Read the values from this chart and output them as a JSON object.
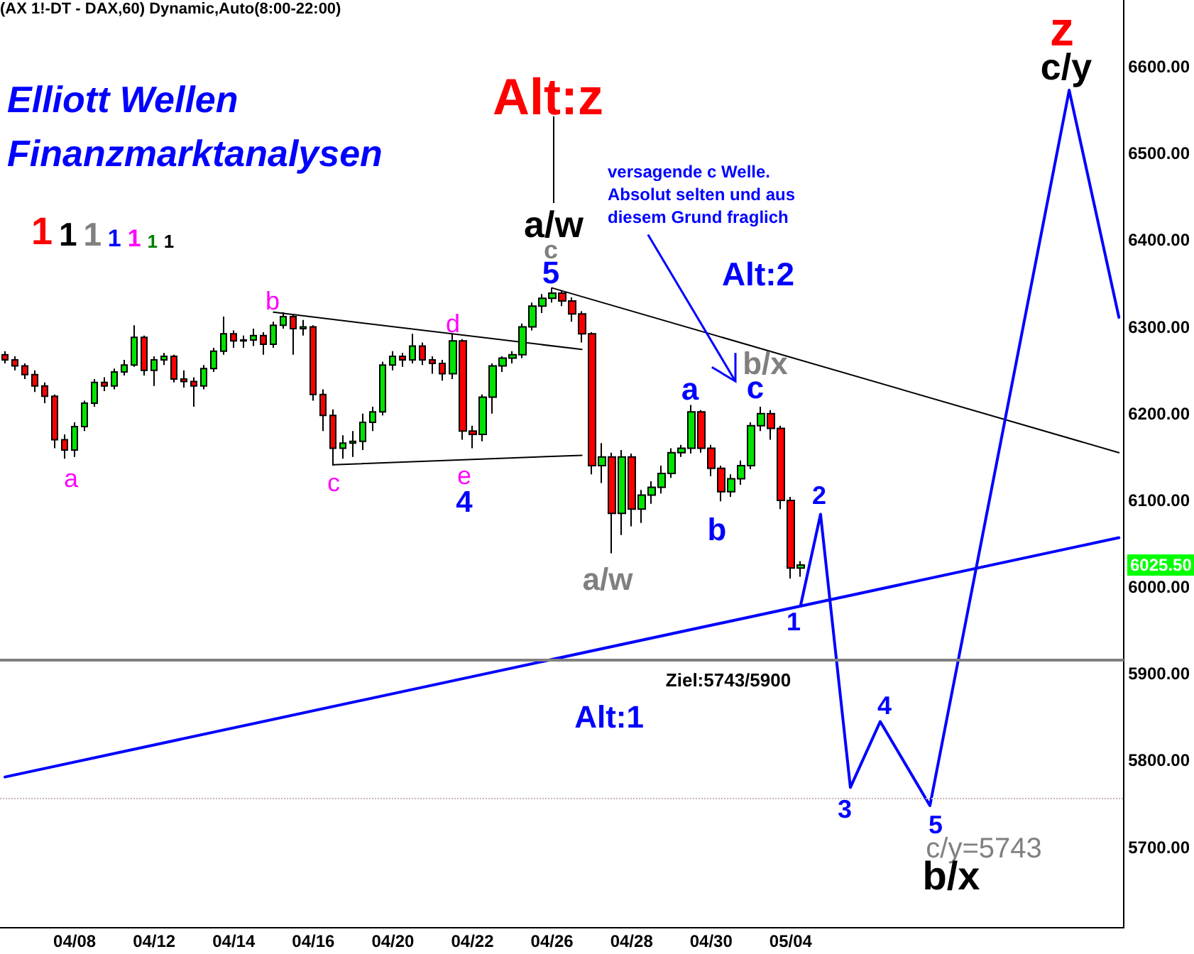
{
  "chart_data": {
    "type": "candlestick",
    "title": "(AX 1!-DT - DAX,60) Dynamic,Auto(8:00-22:00)",
    "categories": [
      null,
      null,
      null,
      null,
      null,
      null,
      null,
      "04/08",
      null,
      null,
      null,
      null,
      null,
      null,
      null,
      "04/12",
      null,
      null,
      null,
      null,
      null,
      null,
      null,
      "04/14",
      null,
      null,
      null,
      null,
      null,
      null,
      null,
      "04/16",
      null,
      null,
      null,
      null,
      null,
      null,
      null,
      "04/20",
      null,
      null,
      null,
      null,
      null,
      null,
      null,
      "04/22",
      null,
      null,
      null,
      null,
      null,
      null,
      null,
      "04/26",
      null,
      null,
      null,
      null,
      null,
      null,
      null,
      "04/28",
      null,
      null,
      null,
      null,
      null,
      null,
      null,
      "04/30",
      null,
      null,
      null,
      null,
      null,
      null,
      null,
      "05/04",
      null,
      null,
      null,
      null,
      null,
      null,
      null,
      null,
      null,
      null,
      null,
      null,
      null,
      null,
      null,
      null,
      null,
      null,
      null,
      null,
      null,
      null,
      null,
      null,
      null,
      null,
      null,
      null,
      null,
      null,
      null,
      null,
      null
    ],
    "ylim": [
      5608,
      6677
    ],
    "yticks": [
      {
        "value": 5700,
        "label": "5700.00"
      },
      {
        "value": 5800,
        "label": "5800.00"
      },
      {
        "value": 5900,
        "label": "5900.00"
      },
      {
        "value": 6000,
        "label": "6000.00"
      },
      {
        "value": 6100,
        "label": "6100.00"
      },
      {
        "value": 6200,
        "label": "6200.00"
      },
      {
        "value": 6300,
        "label": "6300.00"
      },
      {
        "value": 6400,
        "label": "6400.00"
      },
      {
        "value": 6500,
        "label": "6500.00"
      },
      {
        "value": 6600,
        "label": "6600.00"
      }
    ],
    "marker": "none",
    "line_style": "solid",
    "ohlc": [
      [
        6268,
        6272,
        6258,
        6262
      ],
      [
        6262,
        6266,
        6250,
        6255
      ],
      [
        6255,
        6258,
        6240,
        6245
      ],
      [
        6245,
        6250,
        6225,
        6232
      ],
      [
        6232,
        6236,
        6212,
        6220
      ],
      [
        6220,
        6222,
        6160,
        6170
      ],
      [
        6170,
        6176,
        6148,
        6158
      ],
      [
        6158,
        6190,
        6150,
        6185
      ],
      [
        6185,
        6215,
        6180,
        6212
      ],
      [
        6212,
        6240,
        6208,
        6236
      ],
      [
        6236,
        6242,
        6226,
        6232
      ],
      [
        6232,
        6252,
        6228,
        6248
      ],
      [
        6248,
        6262,
        6244,
        6256
      ],
      [
        6256,
        6302,
        6254,
        6288
      ],
      [
        6288,
        6290,
        6244,
        6250
      ],
      [
        6250,
        6266,
        6232,
        6262
      ],
      [
        6262,
        6270,
        6256,
        6266
      ],
      [
        6266,
        6268,
        6236,
        6240
      ],
      [
        6240,
        6250,
        6230,
        6237
      ],
      [
        6237,
        6242,
        6208,
        6232
      ],
      [
        6232,
        6256,
        6228,
        6252
      ],
      [
        6252,
        6276,
        6248,
        6272
      ],
      [
        6272,
        6312,
        6268,
        6292
      ],
      [
        6292,
        6296,
        6276,
        6284
      ],
      [
        6284,
        6290,
        6276,
        6285
      ],
      [
        6285,
        6298,
        6278,
        6290
      ],
      [
        6290,
        6294,
        6268,
        6280
      ],
      [
        6280,
        6306,
        6276,
        6302
      ],
      [
        6302,
        6317,
        6298,
        6312
      ],
      [
        6312,
        6314,
        6268,
        6298
      ],
      [
        6298,
        6308,
        6290,
        6300
      ],
      [
        6300,
        6302,
        6215,
        6222
      ],
      [
        6222,
        6228,
        6180,
        6198
      ],
      [
        6198,
        6205,
        6140,
        6160
      ],
      [
        6160,
        6175,
        6148,
        6166
      ],
      [
        6166,
        6180,
        6150,
        6168
      ],
      [
        6168,
        6200,
        6158,
        6190
      ],
      [
        6190,
        6208,
        6180,
        6202
      ],
      [
        6202,
        6260,
        6198,
        6256
      ],
      [
        6256,
        6272,
        6250,
        6266
      ],
      [
        6266,
        6270,
        6254,
        6262
      ],
      [
        6262,
        6292,
        6258,
        6278
      ],
      [
        6278,
        6282,
        6256,
        6262
      ],
      [
        6262,
        6266,
        6246,
        6258
      ],
      [
        6258,
        6262,
        6238,
        6246
      ],
      [
        6246,
        6292,
        6240,
        6284
      ],
      [
        6284,
        6286,
        6170,
        6180
      ],
      [
        6180,
        6186,
        6160,
        6176
      ],
      [
        6176,
        6222,
        6168,
        6219
      ],
      [
        6219,
        6258,
        6200,
        6255
      ],
      [
        6255,
        6266,
        6248,
        6264
      ],
      [
        6264,
        6272,
        6258,
        6268
      ],
      [
        6268,
        6304,
        6264,
        6300
      ],
      [
        6300,
        6328,
        6296,
        6324
      ],
      [
        6324,
        6338,
        6316,
        6333
      ],
      [
        6333,
        6345,
        6328,
        6339
      ],
      [
        6339,
        6342,
        6324,
        6330
      ],
      [
        6330,
        6334,
        6306,
        6315
      ],
      [
        6315,
        6318,
        6282,
        6292
      ],
      [
        6292,
        6294,
        6130,
        6140
      ],
      [
        6140,
        6166,
        6120,
        6150
      ],
      [
        6150,
        6155,
        6039,
        6085
      ],
      [
        6085,
        6158,
        6060,
        6150
      ],
      [
        6150,
        6154,
        6070,
        6090
      ],
      [
        6090,
        6112,
        6074,
        6106
      ],
      [
        6106,
        6122,
        6096,
        6115
      ],
      [
        6115,
        6140,
        6108,
        6131
      ],
      [
        6131,
        6160,
        6126,
        6155
      ],
      [
        6155,
        6164,
        6150,
        6160
      ],
      [
        6160,
        6210,
        6154,
        6202
      ],
      [
        6202,
        6204,
        6155,
        6160
      ],
      [
        6160,
        6164,
        6128,
        6137
      ],
      [
        6137,
        6140,
        6099,
        6110
      ],
      [
        6110,
        6130,
        6104,
        6125
      ],
      [
        6125,
        6146,
        6118,
        6140
      ],
      [
        6140,
        6190,
        6136,
        6186
      ],
      [
        6186,
        6208,
        6180,
        6200
      ],
      [
        6200,
        6204,
        6170,
        6183
      ],
      [
        6183,
        6186,
        6090,
        6100
      ],
      [
        6100,
        6104,
        6010,
        6022
      ],
      [
        6022,
        6030,
        6012,
        6025.5
      ],
      null,
      null,
      null,
      null,
      null,
      null,
      null,
      null,
      null,
      null,
      null,
      null,
      null,
      null,
      null,
      null,
      null,
      null,
      null,
      null,
      null,
      null,
      null,
      null,
      null,
      null,
      null,
      null,
      null,
      null,
      null,
      null
    ],
    "colors": [
      "#ff0000",
      "#ff0000",
      "#ff0000",
      "#ff0000",
      "#ff0000",
      "#ff0000",
      "#ff0000",
      "#00e400",
      "#00e400",
      "#00e400",
      "#ff0000",
      "#00e400",
      "#00e400",
      "#00e400",
      "#ff0000",
      "#00e400",
      "#00e400",
      "#ff0000",
      "#ff0000",
      "#ff0000",
      "#00e400",
      "#00e400",
      "#00e400",
      "#ff0000",
      "#00e400",
      "#00e400",
      "#ff0000",
      "#00e400",
      "#00e400",
      "#ff0000",
      "#00e400",
      "#ff0000",
      "#ff0000",
      "#ff0000",
      "#00e400",
      "#00e400",
      "#00e400",
      "#00e400",
      "#00e400",
      "#00e400",
      "#ff0000",
      "#00e400",
      "#ff0000",
      "#ff0000",
      "#ff0000",
      "#00e400",
      "#ff0000",
      "#ff0000",
      "#00e400",
      "#00e400",
      "#00e400",
      "#00e400",
      "#00e400",
      "#00e400",
      "#00e400",
      "#00e400",
      "#ff0000",
      "#ff0000",
      "#ff0000",
      "#ff0000",
      "#00e400",
      "#ff0000",
      "#00e400",
      "#ff0000",
      "#00e400",
      "#00e400",
      "#00e400",
      "#00e400",
      "#00e400",
      "#00e400",
      "#ff0000",
      "#ff0000",
      "#ff0000",
      "#00e400",
      "#00e400",
      "#00e400",
      "#00e400",
      "#ff0000",
      "#ff0000",
      "#ff0000",
      "#00e400",
      null,
      null,
      null,
      null,
      null,
      null,
      null,
      null,
      null,
      null,
      null,
      null,
      null,
      null,
      null,
      null,
      null,
      null,
      null,
      null,
      null,
      null,
      null,
      null,
      null,
      null,
      null,
      null,
      null,
      null,
      null,
      null
    ],
    "series": [
      {
        "type": "line",
        "color": "#0000ff",
        "values": [
          5781,
          null,
          null,
          null,
          null,
          null,
          null,
          null,
          null,
          null,
          null,
          null,
          null,
          null,
          null,
          null,
          null,
          null,
          null,
          null,
          null,
          null,
          null,
          null,
          null,
          null,
          null,
          null,
          null,
          null,
          null,
          null,
          null,
          null,
          null,
          null,
          null,
          null,
          null,
          null,
          null,
          null,
          null,
          null,
          null,
          null,
          null,
          null,
          null,
          null,
          null,
          null,
          null,
          null,
          null,
          null,
          null,
          null,
          null,
          null,
          null,
          null,
          null,
          null,
          null,
          null,
          null,
          null,
          null,
          null,
          null,
          null,
          null,
          null,
          null,
          null,
          null,
          null,
          null,
          null,
          null,
          null,
          null,
          null,
          null,
          null,
          null,
          null,
          null,
          null,
          null,
          null,
          null,
          null,
          null,
          null,
          null,
          null,
          null,
          null,
          null,
          null,
          null,
          null,
          null,
          null,
          null,
          null,
          null,
          null,
          null,
          null,
          6057
        ]
      },
      {
        "type": "line",
        "color": "#000000",
        "values": [
          null,
          null,
          null,
          null,
          null,
          null,
          null,
          null,
          null,
          null,
          null,
          null,
          null,
          null,
          null,
          null,
          null,
          null,
          null,
          null,
          null,
          null,
          null,
          null,
          null,
          null,
          null,
          null,
          null,
          null,
          null,
          null,
          null,
          null,
          null,
          null,
          null,
          null,
          null,
          null,
          null,
          null,
          null,
          null,
          null,
          null,
          null,
          null,
          null,
          null,
          null,
          null,
          null,
          null,
          null,
          6345,
          null,
          null,
          null,
          null,
          null,
          null,
          null,
          null,
          null,
          null,
          null,
          null,
          null,
          null,
          null,
          null,
          null,
          null,
          null,
          null,
          null,
          null,
          null,
          null,
          null,
          null,
          null,
          null,
          null,
          null,
          null,
          null,
          null,
          null,
          null,
          null,
          null,
          null,
          null,
          null,
          null,
          null,
          null,
          null,
          null,
          null,
          null,
          null,
          null,
          null,
          null,
          null,
          null,
          null,
          null,
          null,
          6155
        ]
      },
      {
        "type": "line",
        "color": "#000000",
        "values": [
          null,
          null,
          null,
          null,
          null,
          null,
          null,
          null,
          null,
          null,
          null,
          null,
          null,
          null,
          null,
          null,
          null,
          null,
          null,
          null,
          null,
          null,
          null,
          null,
          null,
          null,
          null,
          6317,
          null,
          null,
          null,
          null,
          null,
          null,
          null,
          null,
          null,
          null,
          null,
          null,
          null,
          null,
          null,
          null,
          null,
          null,
          null,
          null,
          null,
          null,
          null,
          null,
          null,
          null,
          null,
          null,
          null,
          null,
          6274,
          null,
          null,
          null,
          null,
          null,
          null,
          null,
          null,
          null,
          null,
          null,
          null,
          null,
          null,
          null,
          null,
          null,
          null,
          null,
          null,
          null,
          null,
          null,
          null,
          null,
          null,
          null,
          null,
          null,
          null,
          null,
          null,
          null,
          null,
          null,
          null,
          null,
          null,
          null,
          null,
          null,
          null,
          null,
          null,
          null,
          null,
          null,
          null,
          null,
          null,
          null,
          null,
          null,
          null
        ]
      },
      {
        "type": "line",
        "color": "#000000",
        "values": [
          null,
          null,
          null,
          null,
          null,
          null,
          null,
          null,
          null,
          null,
          null,
          null,
          null,
          null,
          null,
          null,
          null,
          null,
          null,
          null,
          null,
          null,
          null,
          null,
          null,
          null,
          null,
          null,
          null,
          null,
          null,
          null,
          null,
          6141,
          null,
          null,
          null,
          null,
          null,
          null,
          null,
          null,
          null,
          null,
          null,
          null,
          null,
          null,
          null,
          null,
          null,
          null,
          null,
          null,
          null,
          null,
          null,
          null,
          6152,
          null,
          null,
          null,
          null,
          null,
          null,
          null,
          null,
          null,
          null,
          null,
          null,
          null,
          null,
          null,
          null,
          null,
          null,
          null,
          null,
          null,
          null,
          null,
          null,
          null,
          null,
          null,
          null,
          null,
          null,
          null,
          null,
          null,
          null,
          null,
          null,
          null,
          null,
          null,
          null,
          null,
          null,
          null,
          null,
          null,
          null,
          null,
          null,
          null,
          null,
          null,
          null,
          null,
          null
        ]
      },
      {
        "type": "line",
        "color": "#0000ff",
        "values": [
          null,
          null,
          null,
          null,
          null,
          null,
          null,
          null,
          null,
          null,
          null,
          null,
          null,
          null,
          null,
          null,
          null,
          null,
          null,
          null,
          null,
          null,
          null,
          null,
          null,
          null,
          null,
          null,
          null,
          null,
          null,
          null,
          null,
          null,
          null,
          null,
          null,
          null,
          null,
          null,
          null,
          null,
          null,
          null,
          null,
          null,
          null,
          null,
          null,
          null,
          null,
          null,
          null,
          null,
          null,
          null,
          null,
          null,
          null,
          null,
          null,
          null,
          null,
          null,
          null,
          null,
          null,
          null,
          null,
          null,
          null,
          null,
          null,
          null,
          null,
          null,
          null,
          null,
          null,
          null,
          5979,
          null,
          6084,
          null,
          null,
          5769,
          null,
          null,
          5845,
          null,
          null,
          null,
          null,
          5748,
          null,
          null,
          null,
          null,
          null,
          null,
          null,
          null,
          null,
          null,
          null,
          null,
          null,
          6573,
          null,
          null,
          null,
          null,
          6311
        ]
      }
    ],
    "ref_lines": [
      {
        "axis": "y",
        "value": 5916,
        "color": "#808080",
        "line_style": "solid"
      },
      {
        "axis": "y",
        "value": 5757,
        "color": "#c4b4b4",
        "line_style": "dotted"
      }
    ],
    "annotations": [
      "Elliott Wellen",
      "Finanzmarktanalysen",
      "1 1 1 1 1 1 1",
      "Alt:z",
      "a/w",
      "c",
      "5",
      "a",
      "b",
      "c",
      "d",
      "e",
      "4",
      "a/w",
      "a",
      "b",
      "c",
      "b/x",
      "Alt:2",
      "versagende c Welle.\nAbsolut selten und aus\ndiesem Grund fraglich",
      "1",
      "2",
      "3",
      "4",
      "5",
      "c/y=5743",
      "b/x",
      "z",
      "c/y",
      "Alt:1",
      "Ziel:5743/5900",
      "6025.50"
    ]
  }
}
